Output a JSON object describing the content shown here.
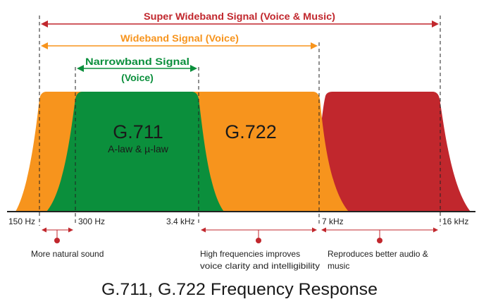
{
  "colors": {
    "super": "#c1272d",
    "wide": "#f7941d",
    "narrow": "#0b8f3c",
    "dark": "#222222",
    "marker": "#c1272d"
  },
  "arrows": {
    "super_label": "Super Wideband Signal (Voice & Music)",
    "wide_label": "Wideband Signal (Voice)",
    "narrow_label_line1": "Narrowband Signal",
    "narrow_label_line2": "(Voice)"
  },
  "codecs": {
    "g711_title": "G.711",
    "g711_subtitle": "A-law & µ-law",
    "g722_title": "G.722"
  },
  "frequencies": {
    "f150": "150 Hz",
    "f300": "300 Hz",
    "f3400": "3.4 kHz",
    "f7000": "7 kHz",
    "f16000": "16 kHz"
  },
  "benefits": {
    "natural_line1": "More natural sound",
    "clarity_line1": "High frequencies improves",
    "clarity_line2": "voice clarity and intelligibility",
    "audio_line1": "Reproduces better audio &",
    "audio_line2": "music"
  },
  "caption": "G.711, G.722 Frequency Response"
}
